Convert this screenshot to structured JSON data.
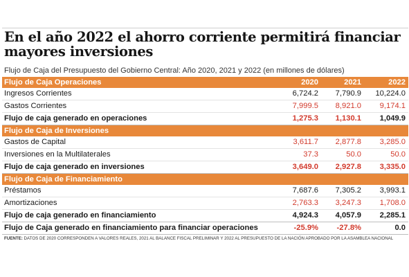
{
  "headline": "En el año 2022 el ahorro corriente permitirá financiar mayores inversiones",
  "subtitle": "Flujo de Caja del Presupuesto del Gobierno Central: Año 2020, 2021 y 2022 (en millones de dólares)",
  "years": [
    "2020",
    "2021",
    "2022"
  ],
  "sections": {
    "operaciones": {
      "title": "Flujo de Caja Operaciones",
      "rows": [
        {
          "label": "Ingresos Corrientes",
          "v2020": "6,724.2",
          "v2021": "7,790.9",
          "v2022": "10,224.0"
        },
        {
          "label": "Gastos Corrientes",
          "v2020": "7,999.5",
          "v2021": "8,921.0",
          "v2022": "9,174.1"
        }
      ],
      "total": {
        "label": "Flujo de caja generado en operaciones",
        "v2020": "1,275.3",
        "v2021": "1,130.1",
        "v2022": "1,049.9"
      }
    },
    "inversiones": {
      "title": "Flujo de Caja de Inversiones",
      "rows": [
        {
          "label": "Gastos de Capital",
          "v2020": "3,611.7",
          "v2021": "2,877.8",
          "v2022": "3,285.0"
        },
        {
          "label": "Inversiones en la Multilaterales",
          "v2020": "37.3",
          "v2021": "50.0",
          "v2022": "50.0"
        }
      ],
      "total": {
        "label": "Flujo de caja generado en inversiones",
        "v2020": "3,649.0",
        "v2021": "2,927.8",
        "v2022": "3,335.0"
      }
    },
    "financiamiento": {
      "title": "Flujo de Caja de Financiamiento",
      "rows": [
        {
          "label": "Préstamos",
          "v2020": "7,687.6",
          "v2021": "7,305.2",
          "v2022": "3,993.1"
        },
        {
          "label": "Amortizaciones",
          "v2020": "2,763.3",
          "v2021": "3,247.3",
          "v2022": "1,708.0"
        }
      ],
      "total": {
        "label": "Flujo de caja generado en financiamiento",
        "v2020": "4,924.3",
        "v2021": "4,057.9",
        "v2022": "2,285.1"
      }
    }
  },
  "final": {
    "label": "Flujo de Caja generado en financiamiento para financiar operaciones",
    "v2020": "-25.9%",
    "v2021": "-27.8%",
    "v2022": "0.0"
  },
  "source": {
    "label": "FUENTE:",
    "text": "DATOS DE 2020 CORRESPONDEN A VALORES REALES, 2021 AL BALANCE FISCAL PRELIMINAR Y 2022 AL PRESUPUESTO DE LA NACIÓN APROBADO POR LA ASAMBLEA NACIONAL"
  },
  "colors": {
    "accent": "#e8883a",
    "negative": "#d23a2c"
  }
}
